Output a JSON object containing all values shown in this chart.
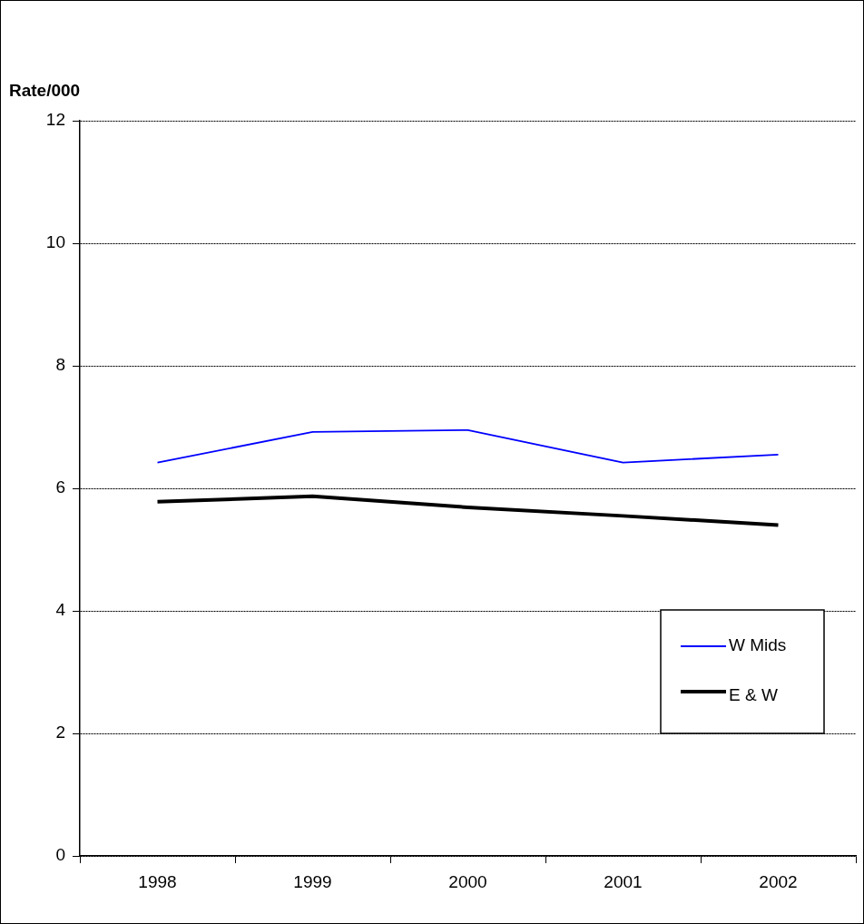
{
  "chart_data": {
    "type": "line",
    "ylabel": "Rate/000",
    "categories": [
      "1998",
      "1999",
      "2000",
      "2001",
      "2002"
    ],
    "series": [
      {
        "name": "W Mids",
        "color": "#0000ff",
        "values": [
          6.42,
          6.92,
          6.95,
          6.42,
          6.55
        ]
      },
      {
        "name": "E & W",
        "color": "#000000",
        "values": [
          5.78,
          5.87,
          5.69,
          5.55,
          5.4
        ]
      }
    ],
    "ylim": [
      0,
      12
    ],
    "yticks": [
      0,
      2,
      4,
      6,
      8,
      10,
      12
    ],
    "grid": "y",
    "legend": "bottom right",
    "marker": "none",
    "line_style": "solid"
  }
}
